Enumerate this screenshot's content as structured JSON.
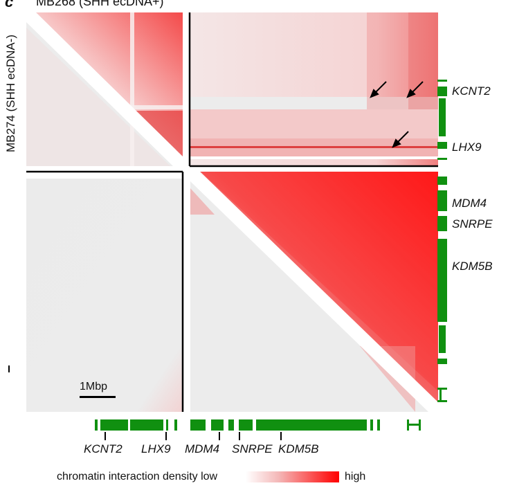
{
  "figure": {
    "panel_label": "c",
    "top_title": "MB268 (SHH ecDNA+)",
    "left_title": "MB274 (SHH ecDNA-)",
    "scale_bar_label": "1Mbp"
  },
  "genes": {
    "right": [
      "KCNT2",
      "LHX9",
      "MDM4",
      "SNRPE",
      "KDM5B"
    ],
    "bottom": [
      "KCNT2",
      "LHX9",
      "MDM4",
      "SNRPE",
      "KDM5B"
    ]
  },
  "legend": {
    "label": "chromatin interaction density low",
    "high_label": "high",
    "colors": {
      "low": "#f0f0f0",
      "high": "#ff0000"
    }
  },
  "colors": {
    "track_green": "#109010",
    "contact_red": "#e8121a",
    "background_grey": "#e9e9e9"
  }
}
